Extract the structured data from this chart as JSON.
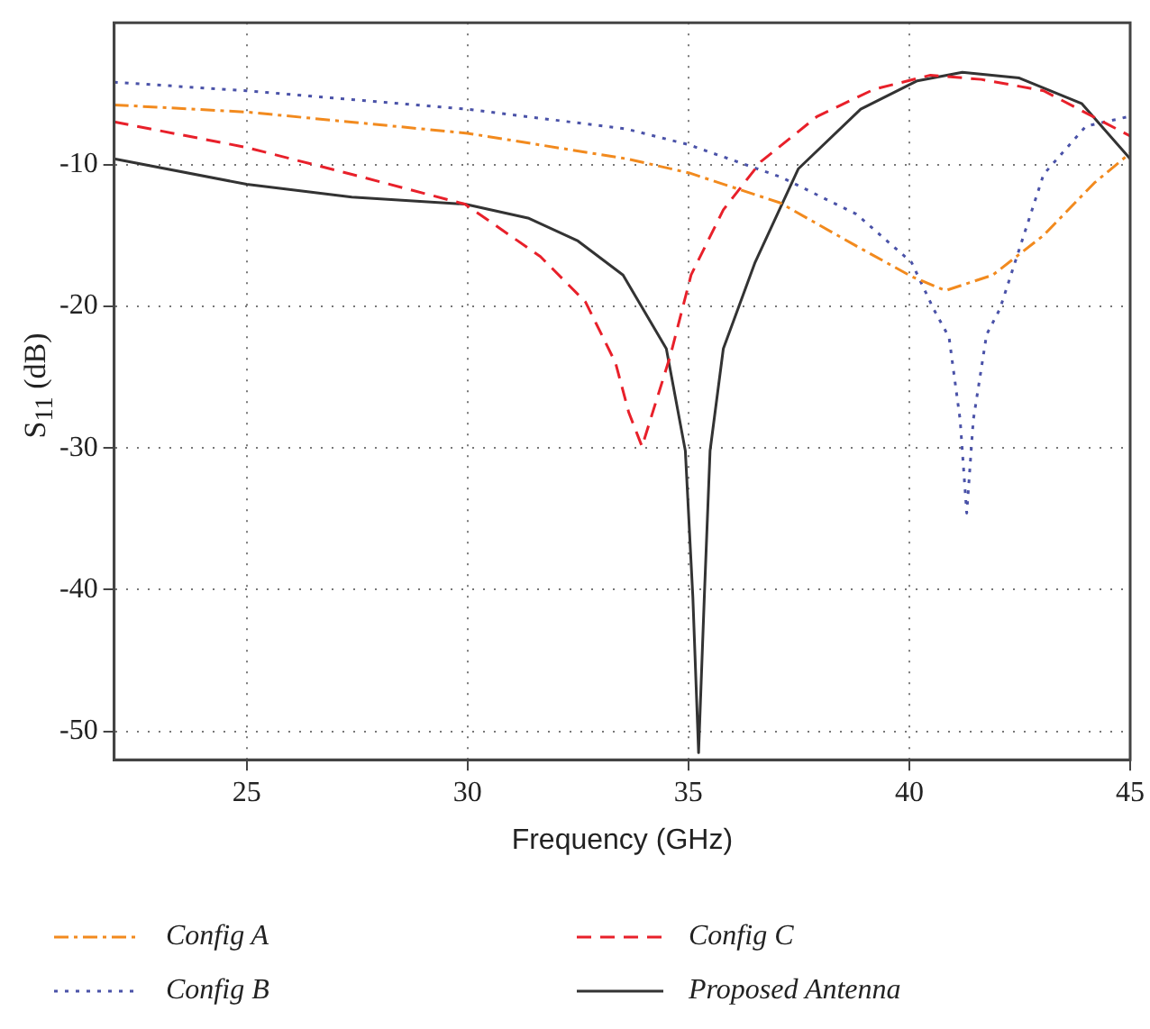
{
  "chart_data": {
    "type": "line",
    "xlabel": "Frequency (GHz)",
    "ylabel": "S$_{11}$ (dB)",
    "xlim": [
      22,
      45
    ],
    "xticks": [
      25,
      30,
      35,
      40,
      45
    ],
    "ylim": [
      -52,
      0
    ],
    "yticks": [
      -10,
      -20,
      -30,
      -40,
      -50
    ],
    "grid": true,
    "legend": "bottom",
    "marker": "none",
    "series": [
      {
        "name": "Config A",
        "color": "#f28a1e",
        "line_style": "dashdot",
        "x": [
          22,
          25,
          30,
          33.6,
          35.02,
          37.07,
          38.77,
          40.05,
          40.82,
          41.89,
          43.04,
          44.19,
          45
        ],
        "values": [
          -5.8,
          -6.3,
          -7.8,
          -9.6,
          -10.6,
          -12.7,
          -15.7,
          -17.9,
          -18.9,
          -17.8,
          -15,
          -11.3,
          -9.2
        ]
      },
      {
        "name": "Config C",
        "color": "#e8202a",
        "line_style": "dashed",
        "x": [
          22,
          25,
          27.38,
          29.94,
          31.65,
          32.67,
          33.35,
          33.65,
          33.95,
          34.59,
          35.06,
          35.79,
          36.64,
          37.92,
          39.2,
          40.48,
          41.63,
          43.04,
          44.88,
          45
        ],
        "values": [
          -7,
          -8.8,
          -10.7,
          -12.8,
          -16.5,
          -19.7,
          -24,
          -27.5,
          -29.9,
          -23.5,
          -17.8,
          -13.2,
          -9.8,
          -6.6,
          -4.7,
          -3.7,
          -4,
          -4.8,
          -7.8,
          -8
        ]
      },
      {
        "name": "Config B",
        "color": "#4a52a8",
        "line_style": "dotted",
        "x": [
          22,
          25,
          30,
          33.6,
          35,
          37.1,
          38.8,
          40.05,
          40.55,
          40.9,
          41.15,
          41.3,
          41.45,
          41.75,
          42.05,
          43.04,
          44,
          45
        ],
        "values": [
          -4.2,
          -4.8,
          -6.1,
          -7.5,
          -8.6,
          -10.9,
          -13.5,
          -16.9,
          -20.2,
          -22.2,
          -28,
          -34.6,
          -28,
          -22,
          -20.2,
          -10.7,
          -7.3,
          -6.6
        ]
      },
      {
        "name": "Proposed Antenna",
        "color": "#333333",
        "line_style": "solid",
        "x": [
          22,
          25,
          27.38,
          29.94,
          31.39,
          32.5,
          33.52,
          34.5,
          34.93,
          35.1,
          35.23,
          35.36,
          35.49,
          35.79,
          36.51,
          37.49,
          38.9,
          40.18,
          41.2,
          42.49,
          43.9,
          45
        ],
        "values": [
          -9.6,
          -11.4,
          -12.3,
          -12.8,
          -13.8,
          -15.4,
          -17.8,
          -23,
          -30.2,
          -40.5,
          -51.5,
          -40.5,
          -30.2,
          -23,
          -16.9,
          -10.3,
          -6.1,
          -4.1,
          -3.5,
          -3.9,
          -5.7,
          -9.6
        ]
      }
    ]
  }
}
